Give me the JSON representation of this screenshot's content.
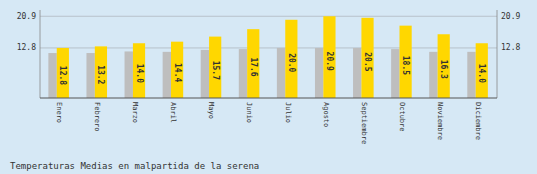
{
  "chart_data": {
    "type": "bar",
    "title": "Temperaturas Medias en malpartida de la serena",
    "categories": [
      "Enero",
      "Febrero",
      "Marzo",
      "Abril",
      "Mayo",
      "Junio",
      "Julio",
      "Agosto",
      "Septiembre",
      "Octubre",
      "Noviembre",
      "Diciembre"
    ],
    "series": [
      {
        "color": "#BEBEBE",
        "values": [
          11.5,
          11.5,
          11.9,
          11.8,
          12.3,
          12.5,
          12.8,
          12.8,
          12.8,
          12.5,
          11.8,
          11.8
        ]
      },
      {
        "color": "#FFD700",
        "values": [
          12.8,
          13.2,
          14.0,
          14.4,
          15.7,
          17.6,
          20.0,
          20.9,
          20.5,
          18.5,
          16.3,
          14.0
        ],
        "value_labels": [
          "12.8",
          "13.2",
          "14.0",
          "14.4",
          "15.7",
          "17.6",
          "20.0",
          "20.9",
          "20.5",
          "18.5",
          "16.3",
          "14.0"
        ],
        "data_labels": true
      }
    ],
    "ylim": [
      0,
      22.5
    ],
    "yticks": [
      12.8,
      20.9
    ],
    "y2lim": [
      0,
      22.5
    ],
    "y2ticks": [
      12.8,
      20.9
    ],
    "grid": true
  }
}
